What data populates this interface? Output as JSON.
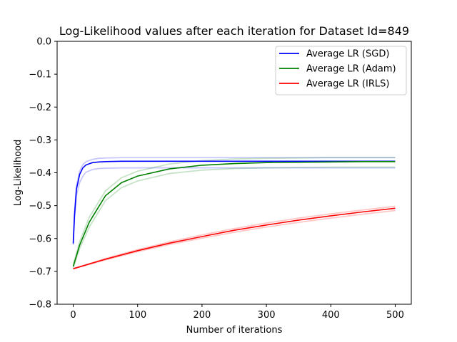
{
  "chart_data": {
    "type": "line",
    "title": "Log-Likelihood values after each iteration for Dataset Id=849",
    "xlabel": "Number of iterations",
    "ylabel": "Log-Likelihood",
    "xlim": [
      -25,
      525
    ],
    "ylim": [
      -0.8,
      0.0
    ],
    "xticks": [
      0,
      100,
      200,
      300,
      400,
      500
    ],
    "yticks": [
      0.0,
      -0.1,
      -0.2,
      -0.3,
      -0.4,
      -0.5,
      -0.6,
      -0.7,
      -0.8
    ],
    "xtick_labels": [
      "0",
      "100",
      "200",
      "300",
      "400",
      "500"
    ],
    "ytick_labels": [
      "0.0",
      "−0.1",
      "−0.2",
      "−0.3",
      "−0.4",
      "−0.5",
      "−0.6",
      "−0.7",
      "−0.8"
    ],
    "legend_position": "top-right",
    "grid": false,
    "series": [
      {
        "name": "Average LR (SGD)",
        "color": "#0000ff",
        "x": [
          0,
          2,
          5,
          10,
          15,
          20,
          30,
          40,
          50,
          75,
          100,
          150,
          200,
          300,
          400,
          500
        ],
        "y": [
          -0.615,
          -0.53,
          -0.45,
          -0.405,
          -0.385,
          -0.376,
          -0.369,
          -0.367,
          -0.366,
          -0.365,
          -0.365,
          -0.365,
          -0.365,
          -0.365,
          -0.365,
          -0.365
        ],
        "runs": [
          {
            "x": [
              0,
              2,
              5,
              10,
              15,
              20,
              30,
              40,
              50,
              75,
              100,
              150,
              200,
              300,
              400,
              500
            ],
            "y": [
              -0.61,
              -0.52,
              -0.44,
              -0.395,
              -0.375,
              -0.366,
              -0.359,
              -0.356,
              -0.355,
              -0.354,
              -0.354,
              -0.354,
              -0.354,
              -0.354,
              -0.354,
              -0.354
            ]
          },
          {
            "x": [
              0,
              2,
              5,
              10,
              15,
              20,
              30,
              40,
              50,
              75,
              100,
              150,
              200,
              300,
              400,
              500
            ],
            "y": [
              -0.62,
              -0.54,
              -0.47,
              -0.43,
              -0.41,
              -0.398,
              -0.39,
              -0.387,
              -0.386,
              -0.385,
              -0.385,
              -0.385,
              -0.385,
              -0.385,
              -0.385,
              -0.385
            ]
          }
        ]
      },
      {
        "name": "Average LR (Adam)",
        "color": "#008000",
        "x": [
          0,
          10,
          25,
          50,
          75,
          100,
          150,
          200,
          250,
          300,
          350,
          400,
          450,
          500
        ],
        "y": [
          -0.685,
          -0.62,
          -0.55,
          -0.47,
          -0.43,
          -0.41,
          -0.388,
          -0.377,
          -0.372,
          -0.369,
          -0.368,
          -0.367,
          -0.366,
          -0.366
        ],
        "runs": [
          {
            "x": [
              0,
              10,
              25,
              50,
              75,
              100,
              150,
              200,
              250,
              300,
              350,
              400,
              450,
              500
            ],
            "y": [
              -0.68,
              -0.61,
              -0.535,
              -0.455,
              -0.415,
              -0.395,
              -0.373,
              -0.363,
              -0.358,
              -0.356,
              -0.355,
              -0.354,
              -0.354,
              -0.354
            ]
          },
          {
            "x": [
              0,
              10,
              25,
              50,
              75,
              100,
              150,
              200,
              250,
              300,
              350,
              400,
              450,
              500
            ],
            "y": [
              -0.69,
              -0.63,
              -0.565,
              -0.485,
              -0.445,
              -0.425,
              -0.402,
              -0.392,
              -0.387,
              -0.385,
              -0.384,
              -0.383,
              -0.383,
              -0.383
            ]
          }
        ]
      },
      {
        "name": "Average LR (IRLS)",
        "color": "#ff0000",
        "x": [
          0,
          50,
          100,
          150,
          200,
          250,
          300,
          350,
          400,
          450,
          500
        ],
        "y": [
          -0.692,
          -0.663,
          -0.637,
          -0.614,
          -0.594,
          -0.575,
          -0.559,
          -0.544,
          -0.531,
          -0.519,
          -0.508
        ],
        "runs": [
          {
            "x": [
              0,
              50,
              100,
              150,
              200,
              250,
              300,
              350,
              400,
              450,
              500
            ],
            "y": [
              -0.692,
              -0.661,
              -0.634,
              -0.61,
              -0.589,
              -0.57,
              -0.553,
              -0.538,
              -0.525,
              -0.513,
              -0.502
            ]
          },
          {
            "x": [
              0,
              50,
              100,
              150,
              200,
              250,
              300,
              350,
              400,
              450,
              500
            ],
            "y": [
              -0.692,
              -0.665,
              -0.64,
              -0.618,
              -0.599,
              -0.581,
              -0.565,
              -0.551,
              -0.538,
              -0.526,
              -0.515
            ]
          }
        ]
      }
    ]
  }
}
